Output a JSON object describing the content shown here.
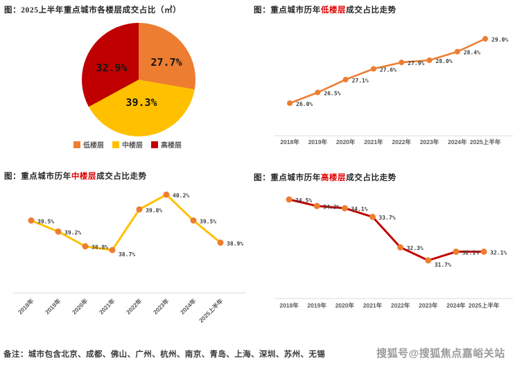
{
  "colors": {
    "orange": "#ED7D31",
    "yellow": "#FFC000",
    "red": "#C00000",
    "title_highlight": "#E00000",
    "axis_line": "#D9D9D9",
    "tick_text": "#595959",
    "data_label_text": "#3D3D3D",
    "watermark_text": "#9B9B9B"
  },
  "pie_section": {
    "title": "图：2025上半年重点城市各楼层成交占比（㎡）",
    "labels": {
      "low": "27.7%",
      "mid": "39.3%",
      "high": "32.9%"
    },
    "legend": [
      {
        "label": "低楼层",
        "color": "#ED7D31"
      },
      {
        "label": "中楼层",
        "color": "#FFC000"
      },
      {
        "label": "高楼层",
        "color": "#C00000"
      }
    ]
  },
  "low_section": {
    "prefix": "图：重点城市历年",
    "highlight": "低楼层",
    "suffix": "成交占比走势"
  },
  "mid_section": {
    "prefix": "图：重点城市历年",
    "highlight": "中楼层",
    "suffix": "成交占比走势"
  },
  "high_section": {
    "prefix": "图：重点城市历年",
    "highlight": "高楼层",
    "suffix": "成交占比走势"
  },
  "footnote": "备注：城市包含北京、成都、佛山、广州、杭州、南京、青岛、上海、深圳、苏州、无锡",
  "watermark": "搜狐号@搜狐焦点嘉峪关站",
  "chart_data": [
    {
      "id": "pie-floors",
      "type": "pie",
      "title": "2025上半年重点城市各楼层成交占比（㎡）",
      "labels": [
        "低楼层",
        "中楼层",
        "高楼层"
      ],
      "values": [
        27.7,
        39.3,
        32.9
      ],
      "value_labels": [
        "27.7%",
        "39.3%",
        "32.9%"
      ],
      "colors": [
        "#ED7D31",
        "#FFC000",
        "#C00000"
      ],
      "start_angle_deg": 0,
      "direction": "clockwise",
      "legend_position": "bottom"
    },
    {
      "id": "line-low",
      "type": "line",
      "title": "重点城市历年低楼层成交占比走势",
      "categories": [
        "2018年",
        "2019年",
        "2020年",
        "2021年",
        "2022年",
        "2023年",
        "2024年",
        "2025上半年"
      ],
      "values": [
        26.0,
        26.5,
        27.1,
        27.6,
        27.9,
        28.0,
        28.4,
        29.0
      ],
      "data_labels": [
        "26.0%",
        "26.5%",
        "27.1%",
        "27.6%",
        "27.9%",
        "28.0%",
        "28.4%",
        "29.0%"
      ],
      "line_color": "#ED7D31",
      "marker_color": "#ED7D31",
      "ylim": [
        26.0,
        29.0
      ],
      "grid": false,
      "x_label_rotation": 0,
      "legend_position": "none"
    },
    {
      "id": "line-mid",
      "type": "line",
      "title": "重点城市历年中楼层成交占比走势",
      "categories": [
        "2018年",
        "2019年",
        "2020年",
        "2021年",
        "2022年",
        "2023年",
        "2024年",
        "2025上半年"
      ],
      "values": [
        39.5,
        39.2,
        38.8,
        38.7,
        39.8,
        40.2,
        39.5,
        38.9
      ],
      "data_labels": [
        "39.5%",
        "39.2%",
        "38.8%",
        "38.7%",
        "39.8%",
        "40.2%",
        "39.5%",
        "38.9%"
      ],
      "line_color": "#FFC000",
      "marker_color": "#ED7D31",
      "ylim": [
        38.7,
        40.2
      ],
      "grid": false,
      "x_label_rotation": 45,
      "legend_position": "none"
    },
    {
      "id": "line-high",
      "type": "line",
      "title": "重点城市历年高楼层成交占比走势",
      "categories": [
        "2018年",
        "2019年",
        "2020年",
        "2021年",
        "2022年",
        "2023年",
        "2024年",
        "2025上半年"
      ],
      "values": [
        34.5,
        34.2,
        34.1,
        33.7,
        32.3,
        31.7,
        32.1,
        32.1
      ],
      "data_labels": [
        "34.5%",
        "34.2%",
        "34.1%",
        "33.7%",
        "32.3%",
        "31.7%",
        "32.1%",
        "32.1%"
      ],
      "line_color": "#C00000",
      "marker_color": "#ED7D31",
      "ylim": [
        31.7,
        34.5
      ],
      "grid": false,
      "x_label_rotation": 0,
      "legend_position": "none"
    }
  ]
}
